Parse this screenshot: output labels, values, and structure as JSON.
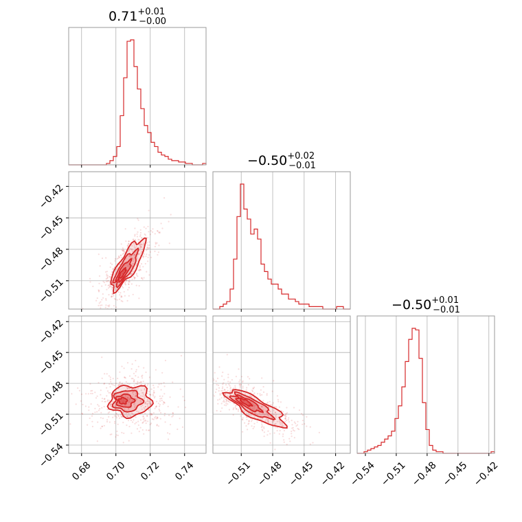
{
  "chart_data": {
    "type": "corner",
    "color": "#d62728",
    "grid": true,
    "parameters": [
      {
        "title": {
          "main": "0.71",
          "sup": "+0.01",
          "sub": "−0.00"
        },
        "range": [
          0.6725,
          0.7525
        ],
        "ticks": [
          0.68,
          0.7,
          0.72,
          0.74
        ],
        "tick_labels": [
          "0.68",
          "0.70",
          "0.72",
          "0.74"
        ]
      },
      {
        "title": {
          "main": "−0.50",
          "sup": "+0.02",
          "sub": "−0.01"
        },
        "range": [
          -0.537,
          -0.406
        ],
        "ticks": [
          -0.51,
          -0.48,
          -0.45,
          -0.42
        ],
        "tick_labels": [
          "−0.51",
          "−0.48",
          "−0.45",
          "−0.42"
        ]
      },
      {
        "title": {
          "main": "−0.50",
          "sup": "+0.01",
          "sub": "−0.01"
        },
        "range": [
          -0.548,
          -0.4145
        ],
        "ticks": [
          -0.54,
          -0.51,
          -0.48,
          -0.45,
          -0.42
        ],
        "tick_labels": [
          "−0.54",
          "−0.51",
          "−0.48",
          "−0.45",
          "−0.42"
        ]
      }
    ],
    "histograms": [
      {
        "param": 0,
        "counts": [
          0,
          0,
          0,
          0,
          0,
          0,
          0,
          0,
          0,
          0,
          0,
          1,
          3,
          6,
          13,
          35,
          62,
          88,
          89,
          70,
          54,
          40,
          28,
          23,
          16,
          13,
          9,
          7,
          6,
          4,
          3,
          3,
          2,
          2,
          1,
          1,
          0,
          0,
          0,
          1
        ]
      },
      {
        "param": 1,
        "counts": [
          0,
          0,
          1,
          2,
          3,
          8,
          20,
          37,
          50,
          40,
          36,
          30,
          32,
          28,
          18,
          15,
          12,
          10,
          10,
          8,
          6,
          6,
          4,
          4,
          3,
          2,
          2,
          2,
          1,
          1,
          1,
          1,
          0,
          0,
          0,
          0,
          1,
          1,
          0,
          0
        ]
      },
      {
        "param": 2,
        "counts": [
          0,
          0,
          1,
          2,
          3,
          4,
          5,
          7,
          9,
          11,
          14,
          22,
          30,
          42,
          58,
          72,
          79,
          78,
          60,
          32,
          15,
          5,
          2,
          1,
          1,
          0,
          0,
          0,
          0,
          0,
          0,
          0,
          0,
          0,
          0,
          0,
          0,
          0,
          0,
          1
        ]
      }
    ],
    "density_2d": [
      {
        "x": 0,
        "y": 1,
        "peak": [
          0.703,
          -0.505
        ],
        "correlation": "positive"
      },
      {
        "x": 0,
        "y": 2,
        "peak": [
          0.703,
          -0.497
        ],
        "correlation": "weak"
      },
      {
        "x": 1,
        "y": 2,
        "peak": [
          -0.508,
          -0.497
        ],
        "correlation": "negative"
      }
    ]
  }
}
